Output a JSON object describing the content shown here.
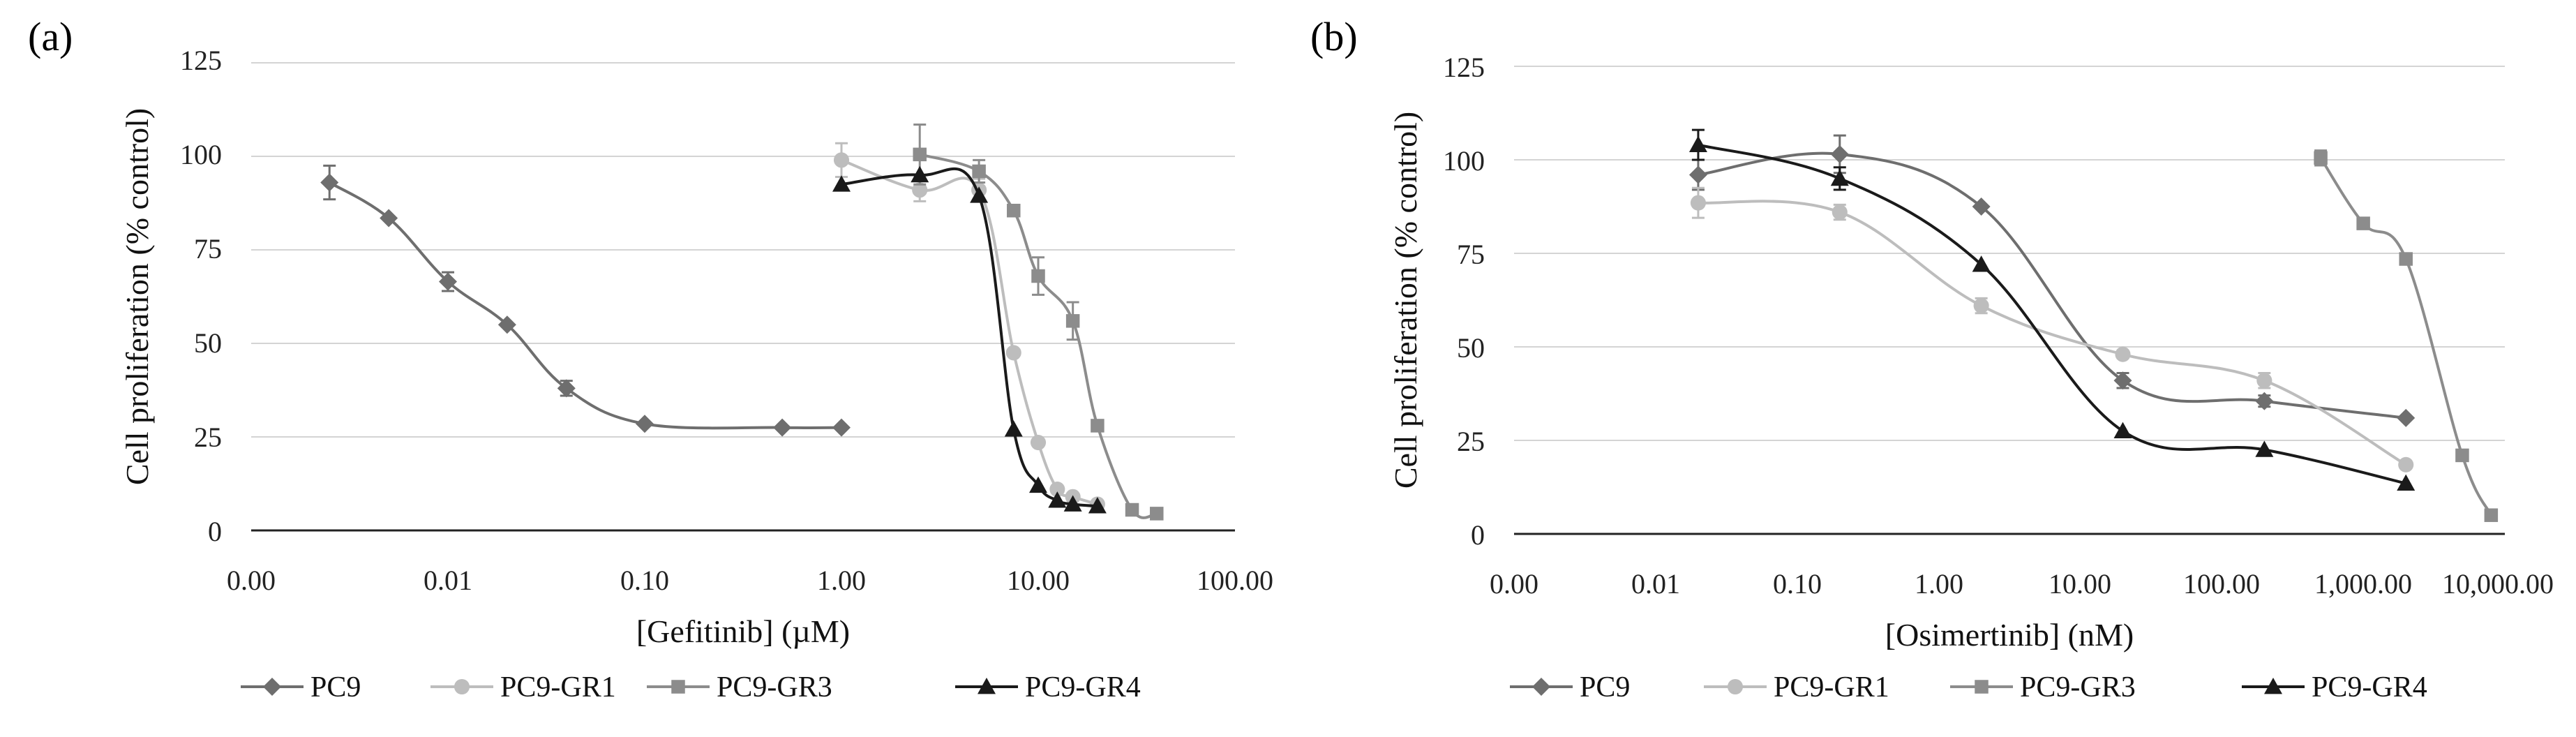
{
  "chart_data": [
    {
      "panel_label": "(a)",
      "type": "line",
      "xscale": "log",
      "xlabel": "[Gefitinib] (µM)",
      "ylabel": "Cell proliferation (% control)",
      "ylim": [
        0,
        125
      ],
      "yticks": [
        "0",
        "25",
        "50",
        "75",
        "100",
        "125"
      ],
      "xticks": [
        "0.00",
        "0.01",
        "0.10",
        "1.00",
        "10.00",
        "100.00"
      ],
      "grid": true,
      "legend_position": "bottom",
      "series": [
        {
          "name": "PC9",
          "color": "#6e6e6e",
          "marker": "diamond",
          "x": [
            0.0025,
            0.005,
            0.01,
            0.02,
            0.04,
            0.1,
            0.5,
            1.0
          ],
          "y": [
            93,
            83.5,
            66.5,
            55,
            38,
            28.5,
            27.5,
            27.5
          ],
          "err": [
            4.5,
            0,
            2.5,
            0,
            2,
            0,
            0,
            0
          ]
        },
        {
          "name": "PC9-GR1",
          "color": "#bdbdbd",
          "marker": "circle",
          "x": [
            1.0,
            2.5,
            5,
            7.5,
            10,
            12.5,
            15,
            20
          ],
          "y": [
            99,
            91,
            91,
            47.5,
            23.5,
            11,
            9,
            7
          ],
          "err": [
            4.5,
            3,
            3,
            0,
            0,
            0,
            0,
            0
          ]
        },
        {
          "name": "PC9-GR3",
          "color": "#8c8c8c",
          "marker": "square",
          "x": [
            2.5,
            5,
            7.5,
            10,
            15,
            20,
            30,
            40
          ],
          "y": [
            100.5,
            96,
            85.5,
            68,
            56,
            28,
            5.5,
            4.5
          ],
          "err": [
            8,
            3,
            0,
            5,
            5,
            0,
            0,
            0
          ]
        },
        {
          "name": "PC9-GR4",
          "color": "#1a1a1a",
          "marker": "triangle",
          "x": [
            1.0,
            2.5,
            5,
            7.5,
            10,
            12.5,
            15,
            20
          ],
          "y": [
            92.5,
            95,
            89.5,
            27,
            12,
            8,
            7,
            6.5
          ],
          "err": [
            0,
            0,
            0,
            0,
            0,
            0,
            0,
            0
          ]
        }
      ]
    },
    {
      "panel_label": "(b)",
      "type": "line",
      "xscale": "log",
      "xlabel": "[Osimertinib] (nM)",
      "ylabel": "Cell proliferation (% control)",
      "ylim": [
        0,
        125
      ],
      "yticks": [
        "0",
        "25",
        "50",
        "75",
        "100",
        "125"
      ],
      "xticks": [
        "0.00",
        "0.01",
        "0.10",
        "1.00",
        "10.00",
        "100.00",
        "1,000.00",
        "10,000.00"
      ],
      "grid": true,
      "legend_position": "bottom",
      "series": [
        {
          "name": "PC9",
          "color": "#6e6e6e",
          "marker": "diamond",
          "x": [
            0.02,
            0.2,
            2,
            20,
            200,
            2000
          ],
          "y": [
            96,
            101.5,
            87.5,
            41,
            35.5,
            31
          ],
          "err": [
            4,
            5,
            0,
            2,
            1.5,
            0
          ]
        },
        {
          "name": "PC9-GR1",
          "color": "#bdbdbd",
          "marker": "circle",
          "x": [
            0.02,
            0.2,
            2,
            20,
            200,
            2000
          ],
          "y": [
            88.5,
            86,
            61,
            48,
            41,
            18.5
          ],
          "err": [
            4,
            2,
            2,
            0,
            2,
            0
          ]
        },
        {
          "name": "PC9-GR3",
          "color": "#8c8c8c",
          "marker": "square",
          "x": [
            500,
            1000,
            2000,
            5000,
            8000
          ],
          "y": [
            100.5,
            83,
            73.5,
            21,
            5
          ],
          "err": [
            2,
            0,
            0,
            0,
            0
          ]
        },
        {
          "name": "PC9-GR4",
          "color": "#1a1a1a",
          "marker": "triangle",
          "x": [
            0.02,
            0.2,
            2,
            20,
            200,
            2000
          ],
          "y": [
            104,
            95,
            72,
            27.5,
            22.5,
            13.5
          ],
          "err": [
            4,
            3,
            0,
            0,
            0,
            0
          ]
        }
      ]
    }
  ]
}
